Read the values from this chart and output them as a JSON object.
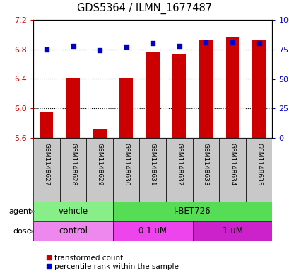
{
  "title": "GDS5364 / ILMN_1677487",
  "samples": [
    "GSM1148627",
    "GSM1148628",
    "GSM1148629",
    "GSM1148630",
    "GSM1148631",
    "GSM1148632",
    "GSM1148633",
    "GSM1148634",
    "GSM1148635"
  ],
  "red_values": [
    5.95,
    6.41,
    5.72,
    6.41,
    6.76,
    6.73,
    6.92,
    6.97,
    6.92
  ],
  "blue_values": [
    75,
    78,
    74,
    77,
    80,
    78,
    81,
    81,
    80
  ],
  "ylim_left": [
    5.6,
    7.2
  ],
  "ylim_right": [
    0,
    100
  ],
  "yticks_left": [
    5.6,
    6.0,
    6.4,
    6.8,
    7.2
  ],
  "yticks_right": [
    0,
    25,
    50,
    75,
    100
  ],
  "yticklabels_right": [
    "0",
    "25",
    "50",
    "75",
    "100%"
  ],
  "bar_bottom": 5.6,
  "bar_color": "#CC0000",
  "dot_color": "#0000CC",
  "agent_groups": [
    {
      "label": "vehicle",
      "start": 0,
      "end": 3,
      "color": "#88EE88"
    },
    {
      "label": "I-BET726",
      "start": 3,
      "end": 9,
      "color": "#55DD55"
    }
  ],
  "dose_groups": [
    {
      "label": "control",
      "start": 0,
      "end": 3,
      "color": "#EE88EE"
    },
    {
      "label": "0.1 uM",
      "start": 3,
      "end": 6,
      "color": "#EE44EE"
    },
    {
      "label": "1 uM",
      "start": 6,
      "end": 9,
      "color": "#CC22CC"
    }
  ],
  "legend_red_label": "transformed count",
  "legend_blue_label": "percentile rank within the sample",
  "sample_bg": "#C8C8C8",
  "agent_label": "agent",
  "dose_label": "dose",
  "gridlines": [
    6.0,
    6.4,
    6.8
  ]
}
